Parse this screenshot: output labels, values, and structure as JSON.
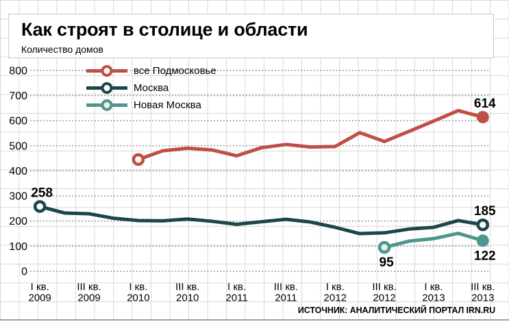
{
  "title": "Как строят в столице и области",
  "subtitle": "Количество домов",
  "source": "ИСТОЧНИК: АНАЛИТИЧЕСКИЙ ПОРТАЛ IRN.RU",
  "colors": {
    "podmoskovye": "#bf4f44",
    "moskva": "#1b464a",
    "novaya_moskva": "#4d968e",
    "grid_paper": "#d8d8d8",
    "dotted_line": "#8c8c8c",
    "text": "#000000"
  },
  "chart_data": {
    "type": "line",
    "title": "Как строят в столице и области",
    "ylabel": "Количество домов",
    "ylim": [
      0,
      800
    ],
    "ytick_step": 100,
    "grid": "dotted horizontal lines every 100 over graph-paper background",
    "legend_position": "top-left",
    "x_unit": "quarter",
    "x_range": [
      "I кв. 2009",
      "III кв. 2013"
    ],
    "xticks": [
      {
        "q": 0,
        "line1": "I кв.",
        "line2": "2009"
      },
      {
        "q": 2,
        "line1": "III кв.",
        "line2": "2009"
      },
      {
        "q": 4,
        "line1": "I кв.",
        "line2": "2010"
      },
      {
        "q": 6,
        "line1": "III кв.",
        "line2": "2010"
      },
      {
        "q": 8,
        "line1": "I кв.",
        "line2": "2011"
      },
      {
        "q": 10,
        "line1": "III кв.",
        "line2": "2011"
      },
      {
        "q": 12,
        "line1": "I кв.",
        "line2": "2012"
      },
      {
        "q": 14,
        "line1": "III кв.",
        "line2": "2012"
      },
      {
        "q": 16,
        "line1": "I кв.",
        "line2": "2013"
      },
      {
        "q": 18,
        "line1": "III кв.",
        "line2": "2013"
      }
    ],
    "series": [
      {
        "key": "vse-podmoskovye",
        "name": "все Подмосковье",
        "color": "#bf4f44",
        "start_q": 4,
        "values": [
          445,
          480,
          490,
          483,
          460,
          492,
          505,
          495,
          497,
          552,
          517,
          557,
          598,
          640,
          614
        ],
        "markers": {
          "start": "open",
          "end": "filled"
        },
        "marker_fill": "#ffffff",
        "labels": [
          {
            "text": "614",
            "q": 18,
            "placement": "above"
          }
        ]
      },
      {
        "key": "moskva",
        "name": "Москва",
        "color": "#1b464a",
        "start_q": 0,
        "values": [
          258,
          232,
          229,
          211,
          202,
          201,
          208,
          199,
          187,
          197,
          207,
          196,
          175,
          150,
          153,
          168,
          175,
          202,
          185
        ],
        "markers": {
          "start": "open",
          "end": "open"
        },
        "marker_fill": "#ffffff",
        "labels": [
          {
            "text": "258",
            "q": 0,
            "placement": "above"
          },
          {
            "text": "185",
            "q": 18,
            "placement": "above"
          }
        ]
      },
      {
        "key": "novaya-moskva",
        "name": "Новая Москва",
        "color": "#4d968e",
        "start_q": 14,
        "values": [
          95,
          120,
          130,
          151,
          122
        ],
        "markers": {
          "start": "open",
          "end": "filled"
        },
        "marker_fill": "#ededed",
        "labels": [
          {
            "text": "95",
            "q": 14,
            "placement": "below"
          },
          {
            "text": "122",
            "q": 18,
            "placement": "below"
          }
        ]
      }
    ]
  }
}
